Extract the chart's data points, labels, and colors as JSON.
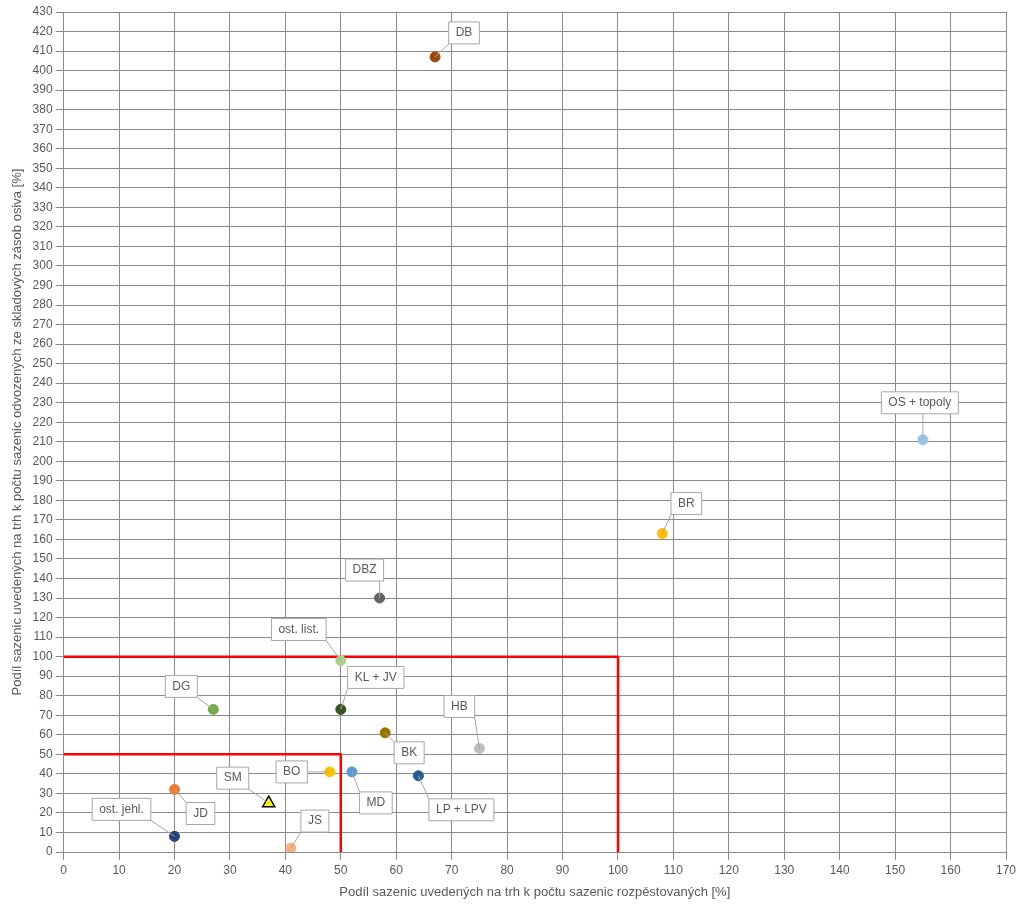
{
  "chart_data": {
    "type": "scatter",
    "xlabel": "Podíl sazenic uvedených na trh k počtu sazenic rozpěstovaných [%]",
    "ylabel": "Podíl sazenic uvedených na trh k počtu sazenic odvozených ze skladových zásob osiva [%]",
    "xlim": [
      0,
      170
    ],
    "xticks": [
      0,
      10,
      20,
      30,
      40,
      50,
      60,
      70,
      80,
      90,
      100,
      110,
      120,
      130,
      140,
      150,
      160,
      170
    ],
    "ylim": [
      0,
      430
    ],
    "yticks": [
      0,
      10,
      20,
      30,
      40,
      50,
      60,
      70,
      80,
      90,
      100,
      110,
      120,
      130,
      140,
      150,
      160,
      170,
      180,
      190,
      200,
      210,
      220,
      230,
      240,
      250,
      260,
      270,
      280,
      290,
      300,
      310,
      320,
      330,
      340,
      350,
      360,
      370,
      380,
      390,
      400,
      410,
      420,
      430
    ],
    "grid": true,
    "legend": false,
    "marker": "circle",
    "series": [
      {
        "name": "DB",
        "color": "#9e480e",
        "x": [
          67
        ],
        "values": [
          407
        ]
      },
      {
        "name": "OS + topoly",
        "color": "#9dc3e6",
        "x": [
          155
        ],
        "values": [
          211
        ]
      },
      {
        "name": "BR",
        "color": "#ffc000",
        "x": [
          108
        ],
        "values": [
          163
        ]
      },
      {
        "name": "DBZ",
        "color": "#636363",
        "x": [
          57
        ],
        "values": [
          130
        ]
      },
      {
        "name": "ost. list.",
        "color": "#a9d18e",
        "x": [
          50
        ],
        "values": [
          98
        ]
      },
      {
        "name": "KL + JV",
        "color": "#375623",
        "x": [
          50
        ],
        "values": [
          73
        ]
      },
      {
        "name": "DG",
        "color": "#70ad47",
        "x": [
          27
        ],
        "values": [
          73
        ]
      },
      {
        "name": "HB",
        "color": "#bfbfbf",
        "x": [
          75
        ],
        "values": [
          53
        ]
      },
      {
        "name": "BK",
        "color": "#997300",
        "x": [
          58
        ],
        "values": [
          61
        ]
      },
      {
        "name": "BO",
        "color": "#ffc000",
        "x": [
          48
        ],
        "values": [
          41
        ]
      },
      {
        "name": "MD",
        "color": "#5b9bd5",
        "x": [
          52
        ],
        "values": [
          41
        ]
      },
      {
        "name": "LP + LPV",
        "color": "#255e91",
        "x": [
          64
        ],
        "values": [
          39
        ]
      },
      {
        "name": "SM",
        "color": "#ffff00",
        "marker": "triangle",
        "x": [
          37
        ],
        "values": [
          25
        ]
      },
      {
        "name": "JD",
        "color": "#ed7d31",
        "x": [
          20
        ],
        "values": [
          32
        ]
      },
      {
        "name": "ost. jehl.",
        "color": "#264478",
        "x": [
          20
        ],
        "values": [
          8
        ]
      },
      {
        "name": "JS",
        "color": "#f4b183",
        "x": [
          41
        ],
        "values": [
          2
        ]
      },
      {
        "type": "line",
        "marker": "none",
        "color": "#ff0000",
        "x": [
          0,
          100,
          100
        ],
        "values": [
          100,
          100,
          0
        ]
      },
      {
        "type": "line",
        "marker": "none",
        "color": "#ff0000",
        "x": [
          0,
          50,
          50
        ],
        "values": [
          50,
          50,
          0
        ]
      }
    ]
  }
}
